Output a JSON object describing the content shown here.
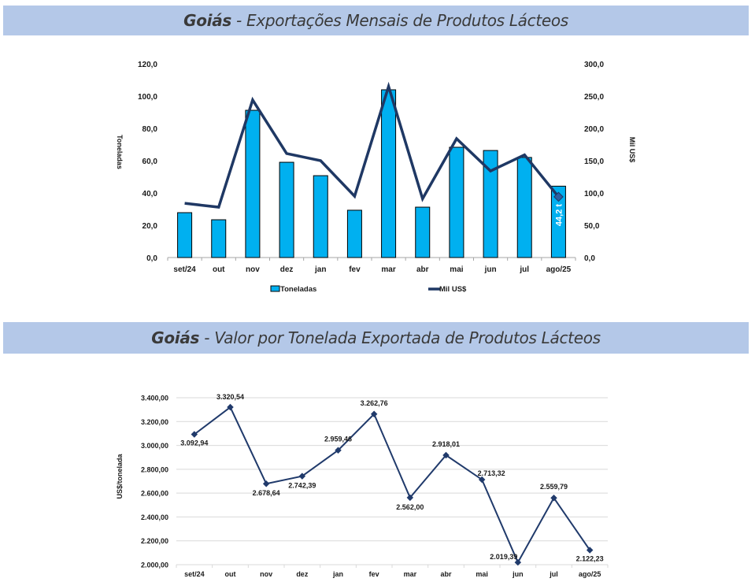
{
  "banners": [
    {
      "bold": "Goiás",
      "rest": " - Exportações Mensais de Produtos Lácteos"
    },
    {
      "bold": "Goiás",
      "rest": " - Valor por Tonelada Exportada de Produtos Lácteos"
    }
  ],
  "colors": {
    "banner_bg": "#b4c8e8",
    "bar_fill": "#00b0f0",
    "line_primary": "#1f3864",
    "line_secondary": "#203a6b",
    "gridline": "#d9d9d9"
  },
  "chart_data": [
    {
      "type": "bar",
      "title": "Goiás - Exportações Mensais de Produtos Lácteos",
      "categories": [
        "set/24",
        "out",
        "nov",
        "dez",
        "jan",
        "fev",
        "mar",
        "abr",
        "mai",
        "jun",
        "jul",
        "ago/25"
      ],
      "series": [
        {
          "name": "Toneladas",
          "type": "bar",
          "axis": "left",
          "values": [
            27.8,
            23.4,
            91.2,
            59.0,
            50.7,
            29.3,
            103.9,
            31.2,
            68.3,
            66.3,
            62.0,
            44.2
          ]
        },
        {
          "name": "Mil US$",
          "type": "line",
          "axis": "right",
          "values": [
            84,
            78,
            244,
            161,
            150,
            95,
            265,
            91,
            184,
            134,
            159,
            94
          ]
        }
      ],
      "ylabel": "Toneladas",
      "y2label": "Mil US$",
      "ylim": [
        0,
        120
      ],
      "y2lim": [
        0,
        300
      ],
      "yticks": [
        "0,0",
        "20,0",
        "40,0",
        "60,0",
        "80,0",
        "100,0",
        "120,0"
      ],
      "y2ticks": [
        "0,0",
        "50,0",
        "100,0",
        "150,0",
        "200,0",
        "250,0",
        "300,0"
      ],
      "annotation": {
        "category": "ago/25",
        "text": "44,2 t"
      },
      "grid": false,
      "legend": "bottom"
    },
    {
      "type": "line",
      "title": "Goiás - Valor por Tonelada Exportada de Produtos Lácteos",
      "categories": [
        "set/24",
        "out",
        "nov",
        "dez",
        "jan",
        "fev",
        "mar",
        "abr",
        "mai",
        "jun",
        "jul",
        "ago/25"
      ],
      "series": [
        {
          "name": "US$/tonelada",
          "values": [
            3092.94,
            3320.54,
            2678.64,
            2742.39,
            2959.46,
            3262.76,
            2562.0,
            2918.01,
            2713.32,
            2019.39,
            2559.79,
            2122.23
          ],
          "labels": [
            "3.092,94",
            "3.320,54",
            "2.678,64",
            "2.742,39",
            "2.959,46",
            "3.262,76",
            "2.562,00",
            "2.918,01",
            "2.713,32",
            "2.019,39",
            "2.559,79",
            "2.122,23"
          ]
        }
      ],
      "ylabel": "US$/tonelada",
      "ylim": [
        2000,
        3400
      ],
      "yticks": [
        "2.000,00",
        "2.200,00",
        "2.400,00",
        "2.600,00",
        "2.800,00",
        "3.000,00",
        "3.200,00",
        "3.400,00"
      ],
      "grid": true,
      "legend": "none"
    }
  ]
}
